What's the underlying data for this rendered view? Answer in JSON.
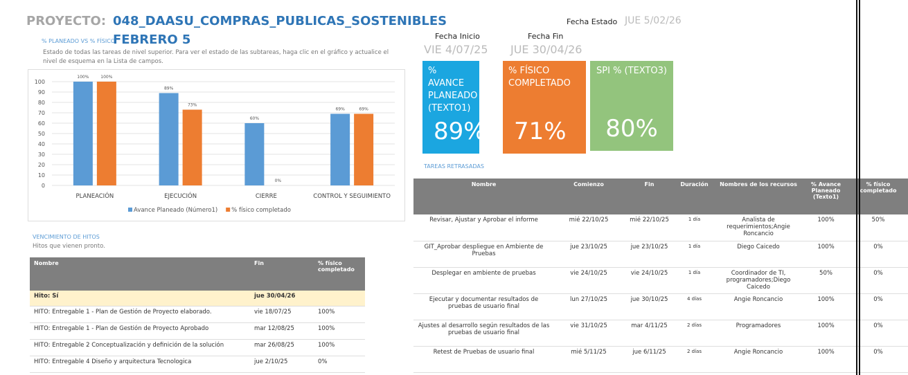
{
  "header": {
    "label": "PROYECTO:",
    "project": "048_DAASU_COMPRAS_PUBLICAS_SOSTENIBLES",
    "subtitle": "FEBRERO 5",
    "status_label": "Fecha Estado",
    "status_date": "JUE 5/02/26",
    "start_label": "Fecha Inicio",
    "start_date": "VIE 4/07/25",
    "end_label": "Fecha Fin",
    "end_date": "JUE 30/04/26"
  },
  "chart_data": {
    "type": "bar",
    "title": "% PLANEADO VS % FÍSICO",
    "description": "Estado de todas las tareas de nivel superior. Para ver el estado de las subtareas, haga clic en el gráfico y actualice el nivel de esquema en la Lista de campos.",
    "categories": [
      "PLANEACIÓN",
      "EJECUCIÓN",
      "CIERRE",
      "CONTROL Y SEGUIMIENTO"
    ],
    "series": [
      {
        "name": "Avance Planeado (Número1)",
        "color": "#5b9bd5",
        "values": [
          100,
          89,
          60,
          69
        ],
        "value_labels": [
          "100%",
          "89%",
          "60%",
          "69%"
        ]
      },
      {
        "name": "% físico completado",
        "color": "#ed7d31",
        "values": [
          100,
          73,
          0,
          69
        ],
        "value_labels": [
          "100%",
          "73%",
          "0%",
          "69%"
        ]
      }
    ],
    "ylim": [
      0,
      100
    ],
    "yticks": [
      0,
      10,
      20,
      30,
      40,
      50,
      60,
      70,
      80,
      90,
      100
    ],
    "grid": true,
    "legend": "bottom"
  },
  "kpis": [
    {
      "label": "% AVANCE PLANEADO (TEXTO1)",
      "value": "89%",
      "color": "#1ba6e0"
    },
    {
      "label": "% FÍSICO COMPLETADO",
      "value": "71%",
      "color": "#ed7d31"
    },
    {
      "label": "SPI % (TEXTO3)",
      "value": "80%",
      "color": "#93c47d"
    }
  ],
  "milestones": {
    "title": "VENCIMIENTO DE HITOS",
    "subtitle": "Hitos que vienen pronto.",
    "columns": [
      "Nombre",
      "Fin",
      "% físico completado"
    ],
    "group": {
      "label": "Hito: Sí",
      "date": "jue 30/04/26"
    },
    "rows": [
      [
        "HITO:  Entregable 1 - Plan de Gestión de Proyecto elaborado.",
        "vie 18/07/25",
        "100%"
      ],
      [
        "HITO:  Entregable 1 - Plan de Gestión de Proyecto Aprobado",
        "mar 12/08/25",
        "100%"
      ],
      [
        "HITO: Entregable 2 Conceptualización y definición de la solución",
        "mar 26/08/25",
        "100%"
      ],
      [
        "HITO: Entregable 4 Diseño y arquitectura Tecnologica",
        "jue 2/10/25",
        "0%"
      ]
    ]
  },
  "delayed": {
    "title": "TAREAS RETRASADAS",
    "columns": [
      "Nombre",
      "Comienzo",
      "Fin",
      "Duración",
      "Nombres de los recursos",
      "% Avance Planeado (Texto1)",
      "% físico completado"
    ],
    "rows": [
      [
        "Revisar, Ajustar y Aprobar el informe",
        "mié 22/10/25",
        "mié 22/10/25",
        "1 día",
        "Analista de requerimientos;Angie Roncancio",
        "100%",
        "50%"
      ],
      [
        "GIT_Aprobar despliegue en Ambiente de Pruebas",
        "jue 23/10/25",
        "jue 23/10/25",
        "1 día",
        "Diego Caicedo",
        "100%",
        "0%"
      ],
      [
        "Desplegar en ambiente de pruebas",
        "vie 24/10/25",
        "vie 24/10/25",
        "1 día",
        "Coordinador de TI, programadores;Diego Caicedo",
        "50%",
        "0%"
      ],
      [
        "Ejecutar y documentar resultados de pruebas de usuario final",
        "lun 27/10/25",
        "jue 30/10/25",
        "4 días",
        "Angie Roncancio",
        "100%",
        "0%"
      ],
      [
        "Ajustes al desarrollo según resultados de las pruebas de usuario final",
        "vie 31/10/25",
        "mar 4/11/25",
        "2 días",
        "Programadores",
        "100%",
        "0%"
      ],
      [
        "Retest de Pruebas de usuario final",
        "mié 5/11/25",
        "jue 6/11/25",
        "2 días",
        "Angie Roncancio",
        "100%",
        "0%"
      ]
    ]
  }
}
